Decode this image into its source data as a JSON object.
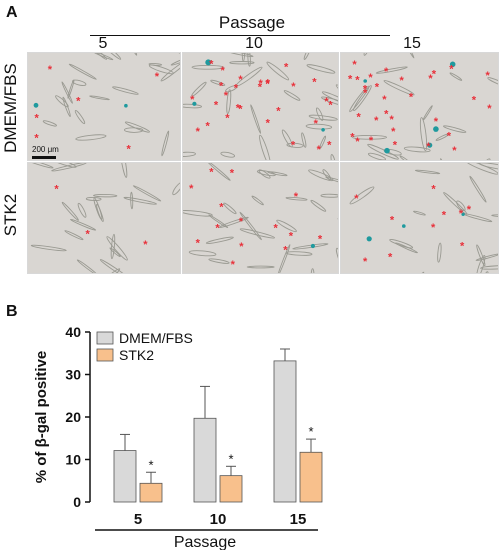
{
  "panel_a": {
    "letter": "A",
    "passage_title": "Passage",
    "passages": [
      "5",
      "10",
      "15"
    ],
    "rows": [
      "DMEM/FBS",
      "STK2"
    ],
    "scale_bar": "200 μm",
    "marker": "*",
    "colors": {
      "marker": "#e8303a",
      "stain": "#1f9a9e",
      "background": "#d9d6d2",
      "cell": "#9a9a92"
    }
  },
  "panel_b": {
    "letter": "B"
  },
  "chart_data": {
    "type": "bar",
    "categories": [
      "5",
      "10",
      "15"
    ],
    "series": [
      {
        "name": "DMEM/FBS",
        "values": [
          12.1,
          19.7,
          33.2
        ],
        "errors": [
          3.8,
          7.5,
          2.8
        ],
        "color": "#d9d9d9"
      },
      {
        "name": "STK2",
        "values": [
          4.4,
          6.2,
          11.7
        ],
        "errors": [
          2.6,
          2.2,
          3.1
        ],
        "color": "#f8c08c"
      }
    ],
    "significance": [
      "*",
      "*",
      "*"
    ],
    "ylabel": "% of β-gal positive",
    "xlabel": "Passage",
    "ylim": [
      0,
      40
    ],
    "yticks": [
      "0",
      "10",
      "20",
      "30",
      "40"
    ],
    "legend_position": "top-left"
  }
}
